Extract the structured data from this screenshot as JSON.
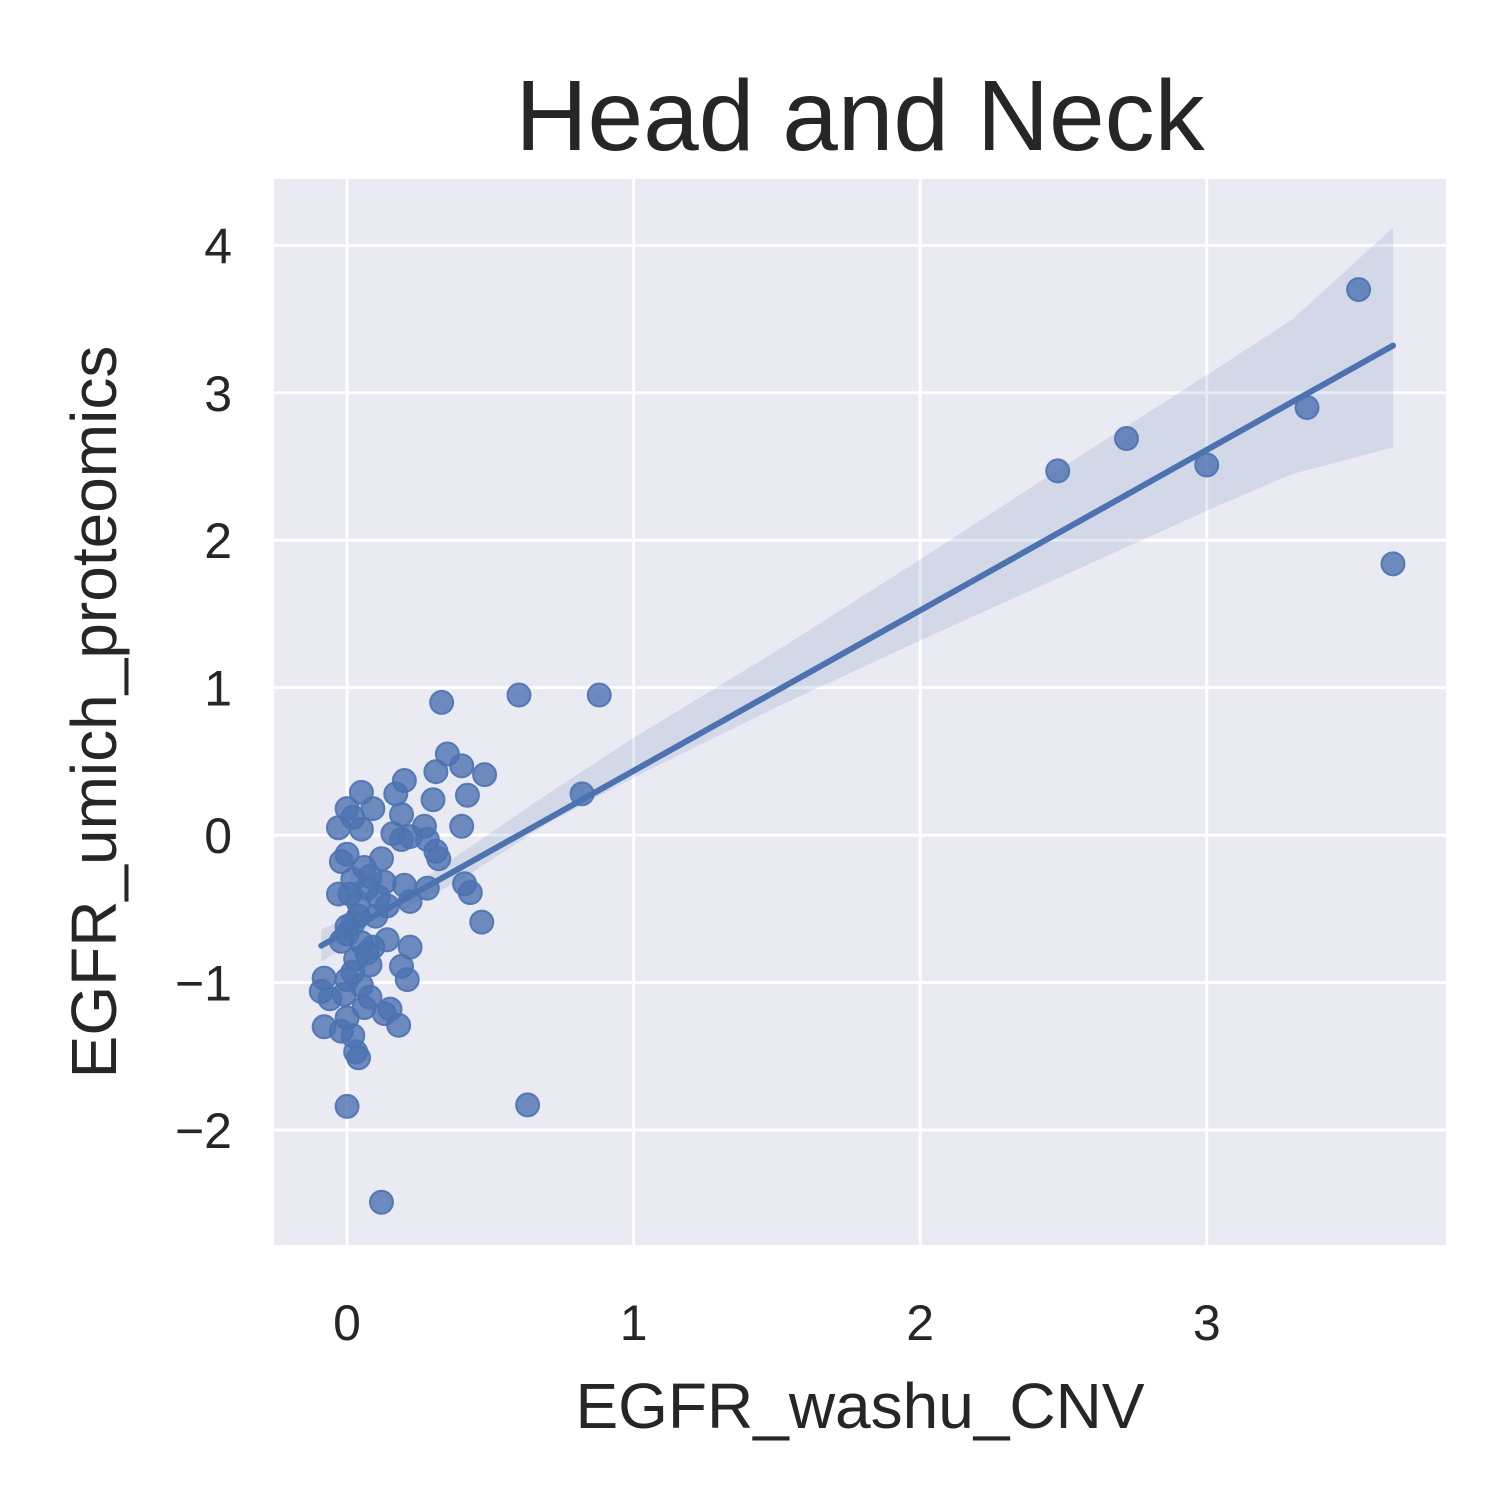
{
  "chart_data": {
    "type": "scatter",
    "title": "Head and Neck",
    "xlabel": "EGFR_washu_CNV",
    "ylabel": "EGFR_umich_proteomics",
    "xlim": [
      -0.255,
      3.835
    ],
    "ylim": [
      -2.78,
      4.45
    ],
    "x_ticks": [
      0,
      1,
      2,
      3
    ],
    "x_tick_labels": [
      "0",
      "1",
      "2",
      "3"
    ],
    "y_ticks": [
      -2,
      -1,
      0,
      1,
      2,
      3,
      4
    ],
    "y_tick_labels": [
      "−2",
      "−1",
      "0",
      "1",
      "2",
      "3",
      "4"
    ],
    "grid": true,
    "background_color": "#eaeaf2",
    "grid_color": "#ffffff",
    "point_color": "#4c72b0",
    "line_color": "#4c72b0",
    "band_color": "#4c72b0",
    "series": [
      {
        "points": [
          [
            3.53,
            3.7
          ],
          [
            3.35,
            2.9
          ],
          [
            3.0,
            2.51
          ],
          [
            2.72,
            2.69
          ],
          [
            2.48,
            2.47
          ],
          [
            3.65,
            1.84
          ],
          [
            0.6,
            0.95
          ],
          [
            0.88,
            0.95
          ],
          [
            0.33,
            0.9
          ],
          [
            0.82,
            0.28
          ],
          [
            0.63,
            -1.83
          ],
          [
            0.0,
            -1.84
          ],
          [
            0.12,
            -2.49
          ],
          [
            0.35,
            0.55
          ],
          [
            0.31,
            0.43
          ],
          [
            0.4,
            0.47
          ],
          [
            0.48,
            0.41
          ],
          [
            0.42,
            0.27
          ],
          [
            0.3,
            0.24
          ],
          [
            0.2,
            0.37
          ],
          [
            0.17,
            0.28
          ],
          [
            0.05,
            0.29
          ],
          [
            0.0,
            0.18
          ],
          [
            0.09,
            0.18
          ],
          [
            0.19,
            0.14
          ],
          [
            0.4,
            0.06
          ],
          [
            0.27,
            0.06
          ],
          [
            -0.03,
            0.05
          ],
          [
            0.02,
            0.12
          ],
          [
            0.05,
            0.04
          ],
          [
            0.16,
            0.01
          ],
          [
            0.22,
            -0.01
          ],
          [
            0.28,
            -0.03
          ],
          [
            0.31,
            -0.11
          ],
          [
            0.32,
            -0.16
          ],
          [
            0.19,
            -0.03
          ],
          [
            0.0,
            -0.13
          ],
          [
            0.12,
            -0.16
          ],
          [
            0.06,
            -0.22
          ],
          [
            -0.02,
            -0.18
          ],
          [
            0.08,
            -0.28
          ],
          [
            0.13,
            -0.32
          ],
          [
            0.2,
            -0.34
          ],
          [
            0.28,
            -0.36
          ],
          [
            0.41,
            -0.33
          ],
          [
            0.43,
            -0.39
          ],
          [
            0.47,
            -0.59
          ],
          [
            0.22,
            -0.45
          ],
          [
            0.14,
            -0.48
          ],
          [
            0.04,
            -0.46
          ],
          [
            -0.03,
            -0.4
          ],
          [
            0.01,
            -0.4
          ],
          [
            0.1,
            -0.55
          ],
          [
            0.02,
            -0.6
          ],
          [
            0.0,
            -0.67
          ],
          [
            0.05,
            -0.73
          ],
          [
            0.14,
            -0.71
          ],
          [
            0.22,
            -0.76
          ],
          [
            0.19,
            -0.89
          ],
          [
            0.21,
            -0.98
          ],
          [
            0.08,
            -0.88
          ],
          [
            0.02,
            -0.93
          ],
          [
            0.0,
            -0.98
          ],
          [
            -0.02,
            -0.72
          ],
          [
            -0.08,
            -0.97
          ],
          [
            -0.09,
            -1.06
          ],
          [
            -0.06,
            -1.11
          ],
          [
            -0.01,
            -1.08
          ],
          [
            0.05,
            -1.02
          ],
          [
            0.08,
            -1.1
          ],
          [
            0.13,
            -1.21
          ],
          [
            0.15,
            -1.18
          ],
          [
            0.18,
            -1.29
          ],
          [
            -0.08,
            -1.3
          ],
          [
            -0.02,
            -1.33
          ],
          [
            0.02,
            -1.36
          ],
          [
            0.03,
            -1.47
          ],
          [
            0.04,
            -1.51
          ],
          [
            0.0,
            -1.24
          ],
          [
            0.06,
            -1.17
          ],
          [
            0.03,
            -0.84
          ],
          [
            0.07,
            -0.8
          ],
          [
            0.09,
            -0.76
          ],
          [
            0.0,
            -0.62
          ],
          [
            0.04,
            -0.55
          ],
          [
            0.02,
            -0.3
          ],
          [
            0.07,
            -0.36
          ],
          [
            0.11,
            -0.42
          ]
        ]
      }
    ],
    "regression": {
      "x0": -0.09,
      "y0": -0.75,
      "x1": 3.65,
      "y1": 3.32
    },
    "confidence_band": [
      [
        -0.09,
        -0.86,
        -0.64
      ],
      [
        0.05,
        -0.68,
        -0.52
      ],
      [
        0.2,
        -0.5,
        -0.38
      ],
      [
        0.4,
        -0.3,
        -0.12
      ],
      [
        0.7,
        0.08,
        0.28
      ],
      [
        1.0,
        0.39,
        0.66
      ],
      [
        1.5,
        0.87,
        1.25
      ],
      [
        2.0,
        1.32,
        1.87
      ],
      [
        2.5,
        1.76,
        2.5
      ],
      [
        3.0,
        2.2,
        3.12
      ],
      [
        3.3,
        2.45,
        3.5
      ],
      [
        3.65,
        2.63,
        4.12
      ]
    ]
  }
}
